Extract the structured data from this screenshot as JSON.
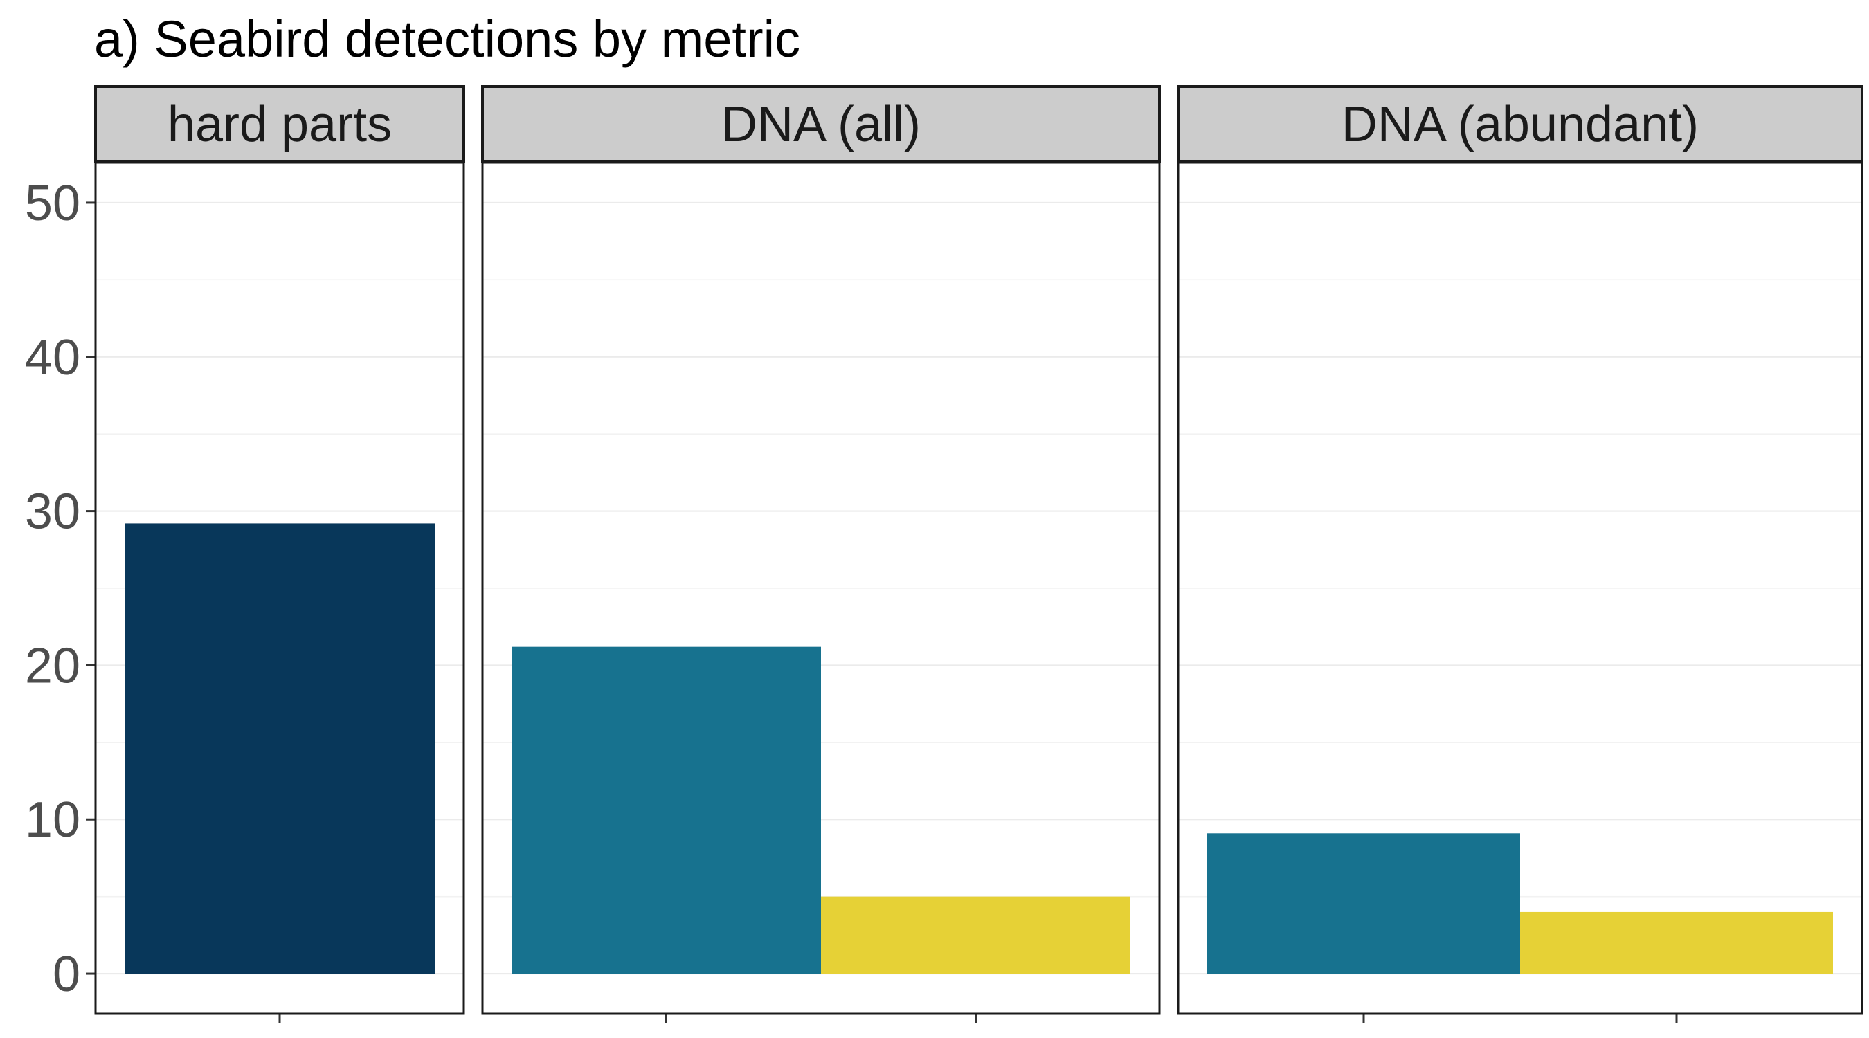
{
  "chart_data": {
    "type": "bar",
    "title": "a) Seabird detections by metric",
    "xlabel": "",
    "ylabel": "",
    "ylim": [
      -2.6,
      52.6
    ],
    "yticks": [
      0,
      10,
      20,
      30,
      40,
      50
    ],
    "grid": true,
    "legend": "none",
    "panels": [
      {
        "label": "hard parts",
        "bars": [
          {
            "value": 29.2,
            "color": "#08375a"
          }
        ]
      },
      {
        "label": "DNA (all)",
        "bars": [
          {
            "value": 21.2,
            "color": "#17728f"
          },
          {
            "value": 5.0,
            "color": "#e6d136"
          }
        ]
      },
      {
        "label": "DNA (abundant)",
        "bars": [
          {
            "value": 9.1,
            "color": "#17728f"
          },
          {
            "value": 4.0,
            "color": "#e6d136"
          }
        ]
      }
    ]
  }
}
